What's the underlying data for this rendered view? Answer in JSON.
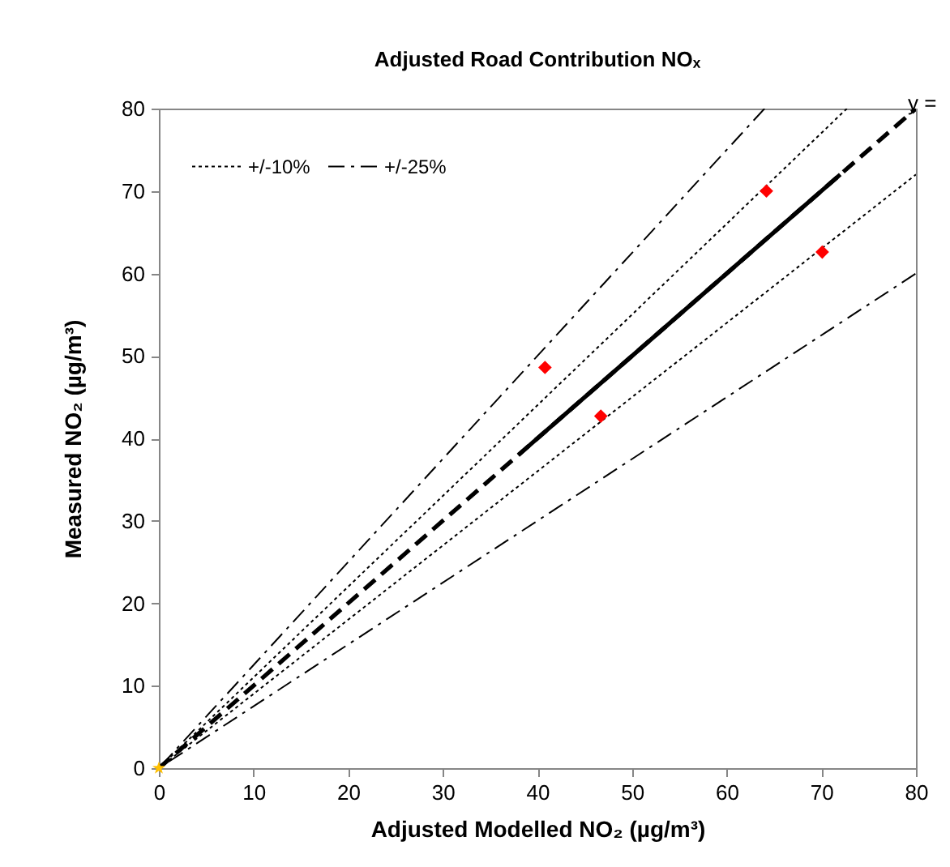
{
  "chart_data": {
    "type": "scatter",
    "title": "Adjusted Road Contribution NOₓ",
    "xlabel": "Adjusted Modelled NO₂ (µg/m³)",
    "ylabel": "Measured NO₂ (µg/m³)",
    "xlim": [
      0,
      80
    ],
    "ylim": [
      0,
      80
    ],
    "xticks": [
      0,
      10,
      20,
      30,
      40,
      50,
      60,
      70,
      80
    ],
    "yticks": [
      0,
      10,
      20,
      30,
      40,
      50,
      60,
      70,
      80
    ],
    "legend": "top left",
    "annotations": [
      "y ="
    ],
    "series": [
      {
        "name": "+/-10%",
        "type": "line",
        "line_style": "dotted",
        "color": "#000000",
        "x": [
          72.7,
          0,
          80
        ],
        "values": [
          80,
          0,
          72
        ]
      },
      {
        "name": "+/-25%",
        "type": "line",
        "line_style": "dashdot",
        "color": "#000000",
        "x": [
          64,
          0,
          80
        ],
        "values": [
          80,
          0,
          60
        ]
      },
      {
        "type": "line",
        "line_style": "dashed",
        "color": "#000000",
        "x": [
          0,
          80
        ],
        "values": [
          0,
          80
        ]
      },
      {
        "type": "line",
        "line_style": "solid",
        "color": "#000000",
        "x": [
          38,
          72
        ],
        "values": [
          38,
          72
        ]
      },
      {
        "type": "scatter",
        "marker": "diamond",
        "color": "#ff0000",
        "x": [
          40.8,
          46.7,
          64.2,
          70.1
        ],
        "values": [
          48.6,
          42.7,
          70.0,
          62.6
        ]
      },
      {
        "type": "scatter",
        "marker": "star",
        "color": "#ffc000",
        "x": [
          0
        ],
        "values": [
          0
        ]
      }
    ]
  }
}
